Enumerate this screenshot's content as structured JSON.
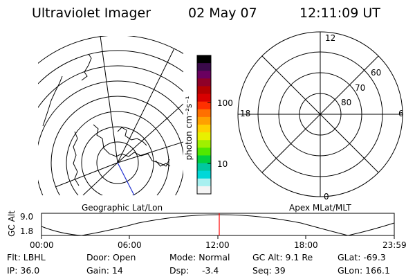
{
  "header": {
    "instrument": "Ultraviolet Imager",
    "date": "02 May 07",
    "time": "12:11:09 UT"
  },
  "colorbar": {
    "unit_label": "photon cm⁻²s⁻¹",
    "ticks": [
      "100",
      "10"
    ],
    "colors": [
      "#000000",
      "#3a0a4a",
      "#6a0060",
      "#8e0028",
      "#b40000",
      "#d80000",
      "#ff3000",
      "#ff7000",
      "#ffa000",
      "#ffd000",
      "#e8f000",
      "#a0f000",
      "#50e800",
      "#00d040",
      "#00c8a0",
      "#00d8d8",
      "#a8f0f0",
      "#f4f4f4"
    ]
  },
  "left_map": {
    "caption": "Geographic Lat/Lon"
  },
  "right_map": {
    "caption": "Apex  MLat/MLT",
    "mlt_labels": {
      "top": "12",
      "left": "18",
      "right": "6",
      "bottom": "0"
    },
    "lat_labels": [
      "60",
      "70",
      "80"
    ]
  },
  "altitude_plot": {
    "axis_label": "GC Alt",
    "y_ticks": [
      "9.0",
      "1.8"
    ],
    "x_ticks": [
      "00:00",
      "06:00",
      "12:00",
      "18:00",
      "23:59"
    ],
    "marker_color": "#ff0000"
  },
  "status": {
    "filter": "Flt: LBHL",
    "door": "Door: Open",
    "mode": "Mode: Normal",
    "gc_alt": "GC Alt: 9.1 Re",
    "glat": "GLat: -69.3",
    "ip": "IP: 36.0",
    "gain": "Gain: 14",
    "dsp_label": "Dsp:",
    "dsp_value": "-3.4",
    "seq": "Seq: 39",
    "glon": "GLon: 166.1"
  }
}
